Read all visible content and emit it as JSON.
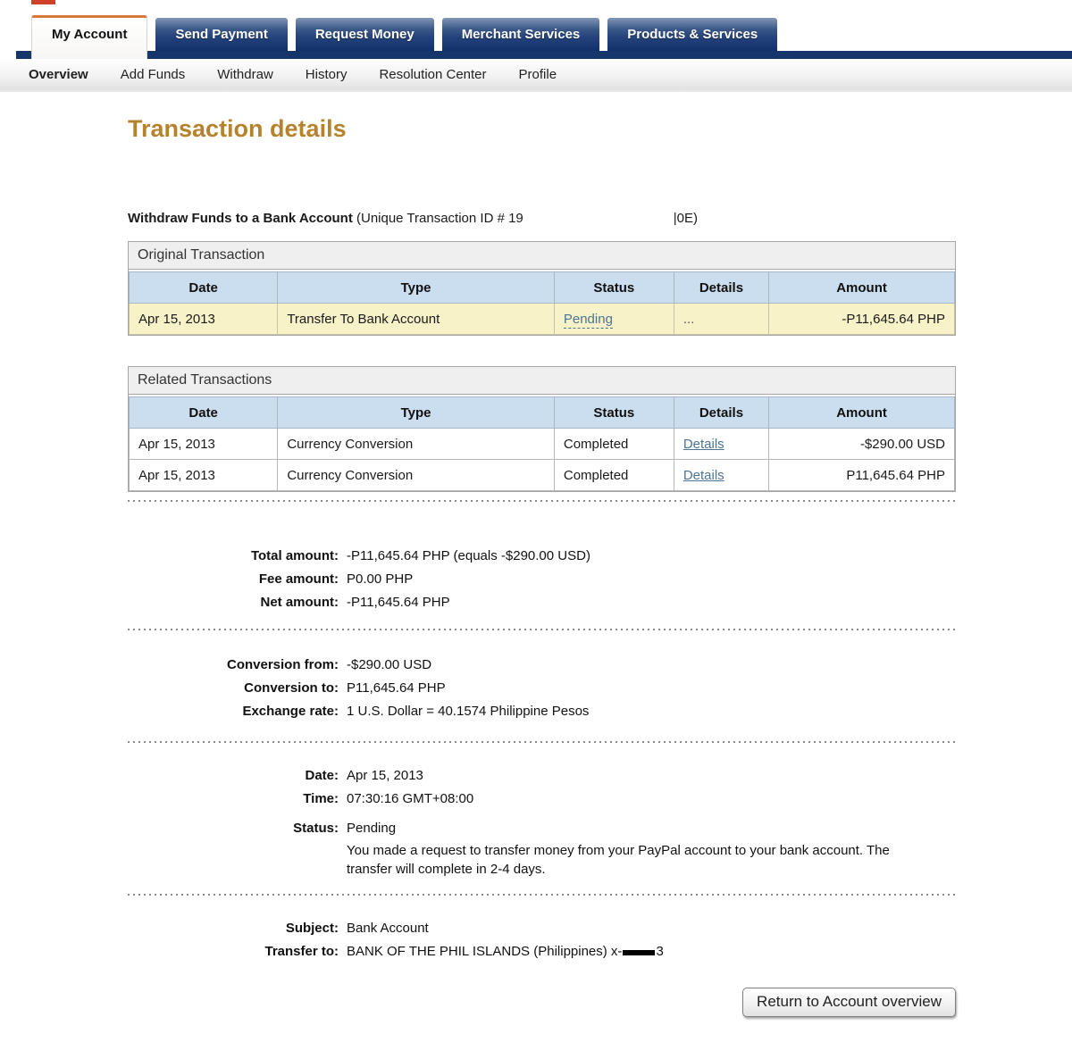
{
  "colors": {
    "accent-orange": "#d8793c",
    "navy": "#16356b",
    "tab-blue-top": "#8196b6",
    "tab-blue-bottom": "#12306b",
    "logo-red": "#cf4128",
    "title-brown": "#b5822e",
    "link": "#4c7494",
    "header-blue": "#cbdeef",
    "row-yellow": "#f8f2c9"
  },
  "main_tabs": [
    {
      "label": "My Account",
      "active": true
    },
    {
      "label": "Send Payment",
      "active": false
    },
    {
      "label": "Request Money",
      "active": false
    },
    {
      "label": "Merchant Services",
      "active": false
    },
    {
      "label": "Products & Services",
      "active": false
    }
  ],
  "subnav": {
    "items": [
      "Overview",
      "Add Funds",
      "Withdraw",
      "History",
      "Resolution Center",
      "Profile"
    ],
    "active": "Overview"
  },
  "page": {
    "title": "Transaction details"
  },
  "transaction_header": {
    "title_bold": "Withdraw Funds to a Bank Account",
    "id_prefix": "(Unique Transaction ID # 19",
    "id_suffix": "|0E)"
  },
  "original_transaction": {
    "section_title": "Original Transaction",
    "columns": [
      "Date",
      "Type",
      "Status",
      "Details",
      "Amount"
    ],
    "rows": [
      {
        "date": "Apr 15, 2013",
        "type": "Transfer To Bank Account",
        "status": "Pending",
        "details": "...",
        "amount": "-P11,645.64 PHP"
      }
    ]
  },
  "related_transactions": {
    "section_title": "Related Transactions",
    "columns": [
      "Date",
      "Type",
      "Status",
      "Details",
      "Amount"
    ],
    "rows": [
      {
        "date": "Apr 15, 2013",
        "type": "Currency Conversion",
        "status": "Completed",
        "details": "Details",
        "amount": "-$290.00 USD"
      },
      {
        "date": "Apr 15, 2013",
        "type": "Currency Conversion",
        "status": "Completed",
        "details": "Details",
        "amount": "P11,645.64 PHP"
      }
    ]
  },
  "amounts": {
    "total_label": "Total amount:",
    "total_value": "-P11,645.64 PHP (equals -$290.00 USD)",
    "fee_label": "Fee amount:",
    "fee_value": "P0.00 PHP",
    "net_label": "Net amount:",
    "net_value": "-P11,645.64 PHP"
  },
  "conversion": {
    "from_label": "Conversion from:",
    "from_value": "-$290.00 USD",
    "to_label": "Conversion to:",
    "to_value": "P11,645.64 PHP",
    "rate_label": "Exchange rate:",
    "rate_value": "1 U.S. Dollar = 40.1574 Philippine Pesos"
  },
  "timing": {
    "date_label": "Date:",
    "date_value": "Apr 15, 2013",
    "time_label": "Time:",
    "time_value": "07:30:16 GMT+08:00"
  },
  "status": {
    "label": "Status:",
    "value": "Pending",
    "description": "You made a request to transfer money from your PayPal account to your bank account. The transfer will complete in 2-4 days."
  },
  "recipient": {
    "subject_label": "Subject:",
    "subject_value": "Bank Account",
    "transfer_label": "Transfer to:",
    "transfer_value_prefix": "BANK OF THE PHIL ISLANDS (Philippines) x-",
    "transfer_value_suffix": "3"
  },
  "footer": {
    "return_button_label": "Return to Account overview"
  }
}
